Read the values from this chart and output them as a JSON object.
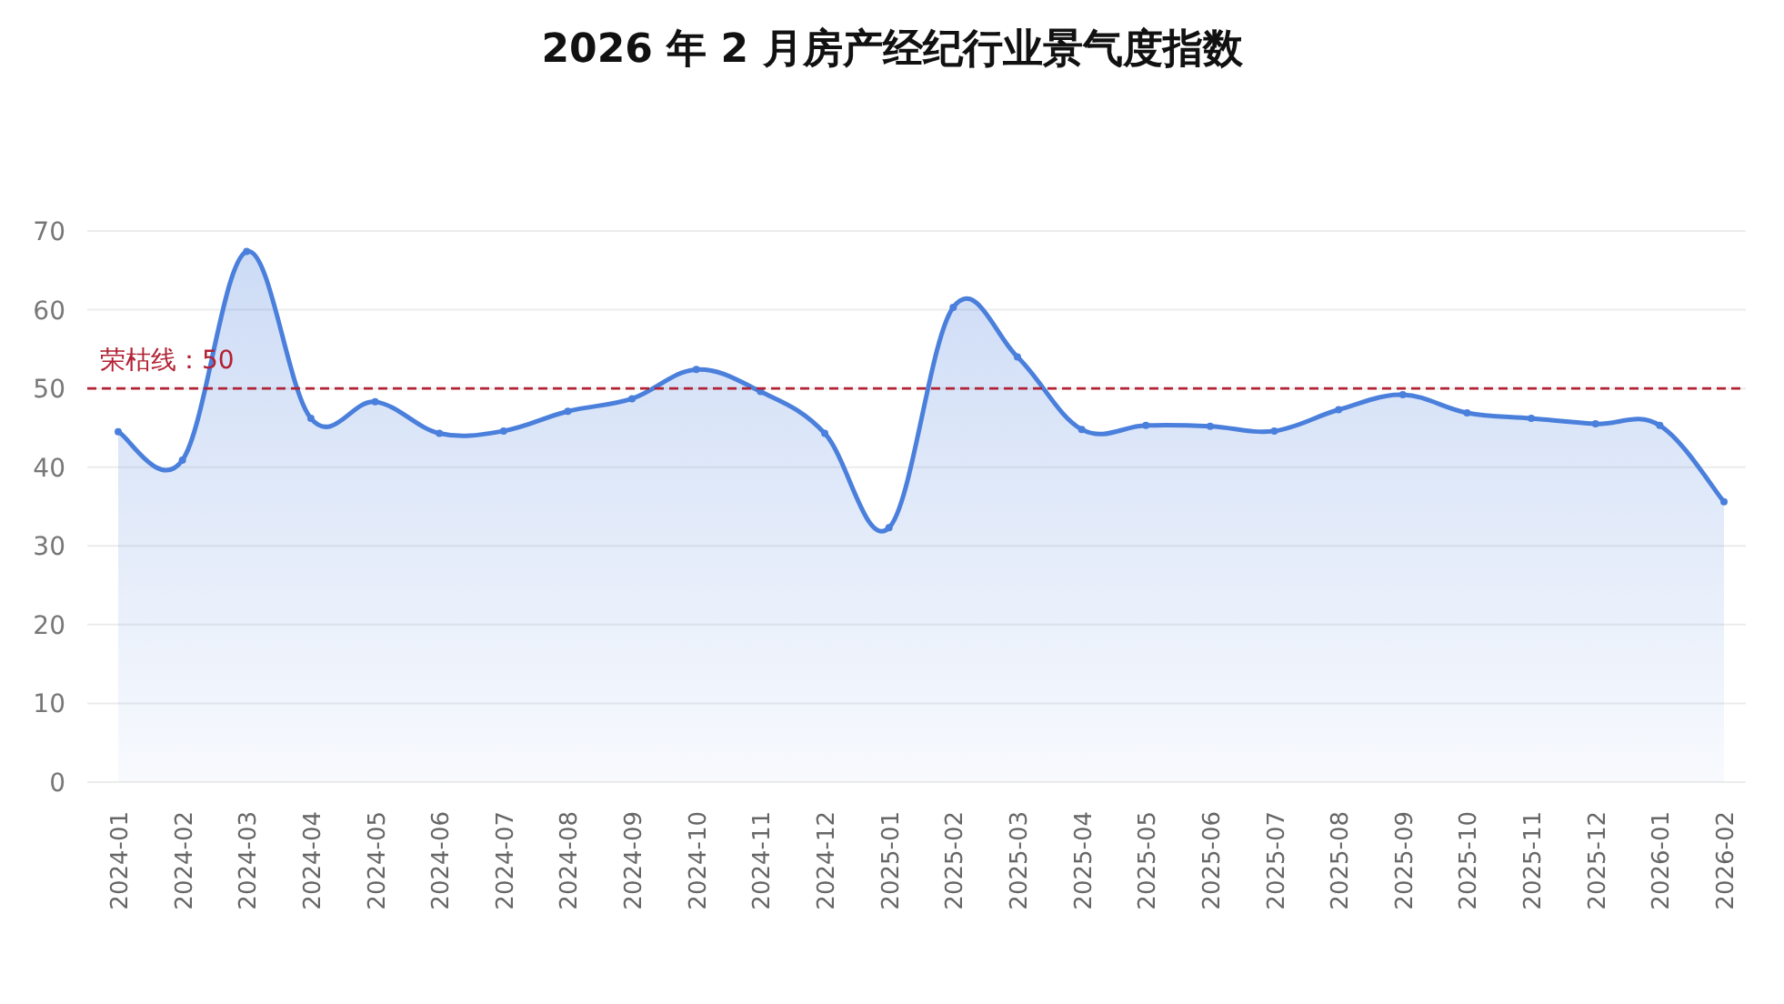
{
  "chart_data": {
    "type": "area",
    "title": "2026 年 2 月房产经纪行业景气度指数",
    "categories": [
      "2024-01",
      "2024-02",
      "2024-03",
      "2024-04",
      "2024-05",
      "2024-06",
      "2024-07",
      "2024-08",
      "2024-09",
      "2024-10",
      "2024-11",
      "2024-12",
      "2025-01",
      "2025-02",
      "2025-03",
      "2025-04",
      "2025-05",
      "2025-06",
      "2025-07",
      "2025-08",
      "2025-09",
      "2025-10",
      "2025-11",
      "2025-12",
      "2026-01",
      "2026-02"
    ],
    "series": [
      {
        "color": "#4a7fdc",
        "values": [
          44.5,
          40.9,
          67.4,
          46.2,
          48.3,
          44.3,
          44.6,
          47.1,
          48.7,
          52.4,
          49.6,
          44.3,
          32.3,
          60.3,
          54.0,
          44.8,
          45.3,
          45.2,
          44.6,
          47.3,
          49.2,
          46.9,
          46.2,
          45.5,
          45.3,
          35.6
        ]
      }
    ],
    "ylim": [
      0,
      70
    ],
    "yticks": [
      0,
      10,
      20,
      30,
      40,
      50,
      60,
      70
    ],
    "grid": "y",
    "marker": "circle",
    "line_style": "solid",
    "ref_lines": [
      {
        "axis": "y",
        "value": 50,
        "label": "荣枯线：50",
        "color": "#b22234",
        "line_style": "dashed"
      }
    ]
  }
}
